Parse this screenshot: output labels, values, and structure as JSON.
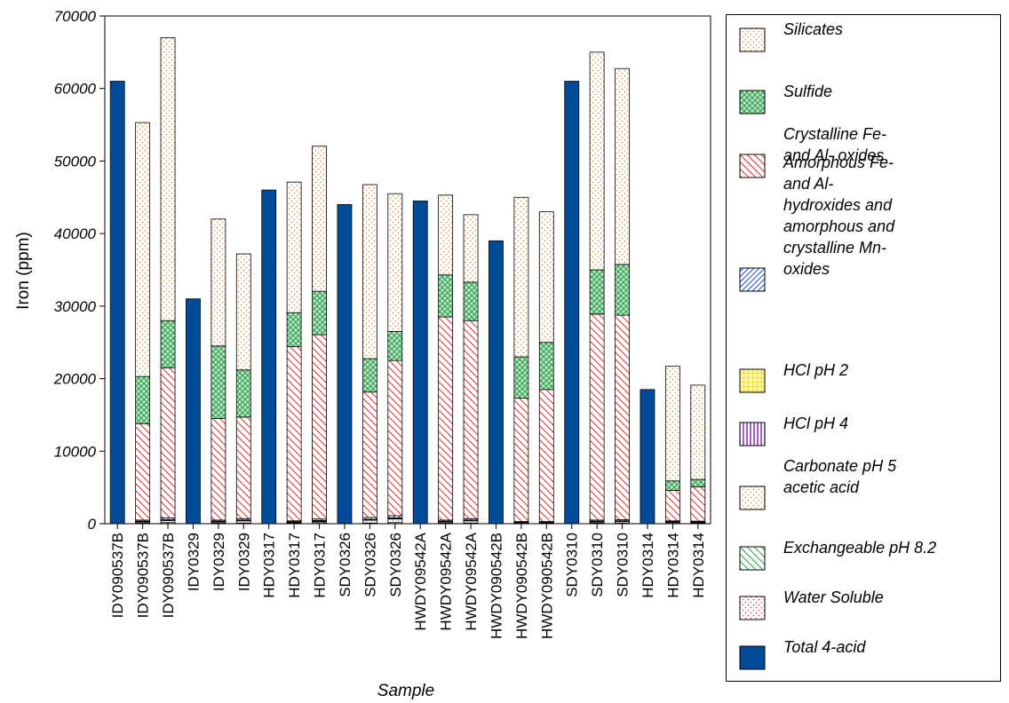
{
  "chart_data": {
    "type": "bar",
    "xlabel": "Sample",
    "ylabel": "Iron (ppm)",
    "ylim": [
      0,
      70000
    ],
    "yticks": [
      0,
      10000,
      20000,
      30000,
      40000,
      50000,
      60000,
      70000
    ],
    "categories": [
      "IDY090537B",
      "IDY090537B",
      "IDY090537B",
      "IDY0329",
      "IDY0329",
      "IDY0329",
      "HDY0317",
      "HDY0317",
      "HDY0317",
      "SDY0326",
      "SDY0326",
      "SDY0326",
      "HWDY09542A",
      "HWDY09542A",
      "HWDY09542A",
      "HWDY090542B",
      "HWDY090542B",
      "HWDY090542B",
      "SDY0310",
      "SDY0310",
      "SDY0310",
      "HDY0314",
      "HDY0314",
      "HDY0314"
    ],
    "legend_position": "right",
    "grid": false,
    "series": [
      {
        "name": "Total 4-acid",
        "color": "#004b97",
        "pattern": "solid",
        "values": [
          61000,
          0,
          0,
          31000,
          0,
          0,
          46000,
          0,
          0,
          44000,
          0,
          0,
          44500,
          0,
          0,
          39000,
          0,
          0,
          61000,
          0,
          0,
          18500,
          0,
          0
        ]
      },
      {
        "name": "Water Soluble",
        "color": "#e04040",
        "pattern": "dots",
        "values": [
          0,
          0,
          0,
          0,
          0,
          0,
          0,
          0,
          0,
          0,
          0,
          0,
          0,
          0,
          0,
          0,
          0,
          0,
          0,
          0,
          0,
          0,
          0,
          0
        ]
      },
      {
        "name": "Exchangeable pH 8.2",
        "color": "#2e9a4a",
        "pattern": "diag-back",
        "values": [
          0,
          100,
          150,
          0,
          100,
          100,
          0,
          80,
          150,
          0,
          100,
          150,
          0,
          100,
          100,
          0,
          50,
          50,
          0,
          100,
          100,
          0,
          50,
          50
        ]
      },
      {
        "name": "Carbonate pH 5 acetic acid",
        "color": "#e08a30",
        "pattern": "dots",
        "values": [
          0,
          150,
          300,
          0,
          150,
          300,
          0,
          100,
          150,
          0,
          400,
          500,
          0,
          150,
          300,
          0,
          50,
          50,
          0,
          150,
          200,
          0,
          150,
          100
        ]
      },
      {
        "name": "HCl pH 4",
        "color": "#7a1fa0",
        "pattern": "vertical",
        "values": [
          0,
          50,
          50,
          0,
          50,
          50,
          0,
          50,
          100,
          0,
          50,
          100,
          0,
          50,
          50,
          0,
          50,
          50,
          0,
          50,
          50,
          0,
          50,
          50
        ]
      },
      {
        "name": "HCl pH 2",
        "color": "#d8c800",
        "pattern": "grid",
        "values": [
          0,
          50,
          50,
          0,
          50,
          50,
          0,
          50,
          50,
          0,
          50,
          50,
          0,
          50,
          50,
          0,
          50,
          50,
          0,
          50,
          50,
          0,
          50,
          50
        ]
      },
      {
        "name": "Amorphous Fe- and Al- hydroxides and amorphous and crystalline Mn- oxides",
        "color": "#2050c0",
        "pattern": "diag-forward",
        "values": [
          0,
          150,
          250,
          0,
          150,
          200,
          0,
          120,
          200,
          0,
          250,
          300,
          0,
          150,
          200,
          0,
          100,
          100,
          0,
          150,
          150,
          0,
          100,
          100
        ]
      },
      {
        "name": "Crystalline Fe- and Al- oxides",
        "color": "#e03030",
        "pattern": "diag-back",
        "values": [
          0,
          13300,
          20700,
          0,
          14000,
          14000,
          0,
          24000,
          25400,
          0,
          17300,
          21400,
          0,
          28000,
          27300,
          0,
          17000,
          18200,
          0,
          28400,
          28200,
          0,
          4200,
          4750
        ]
      },
      {
        "name": "Sulfide",
        "color": "#2e9a4a",
        "pattern": "crosshatch",
        "values": [
          0,
          6500,
          6500,
          0,
          10000,
          6500,
          0,
          4700,
          6000,
          0,
          4600,
          4000,
          0,
          5800,
          5300,
          0,
          5700,
          6500,
          0,
          6100,
          7000,
          0,
          1300,
          1000
        ]
      },
      {
        "name": "Silicates",
        "color": "#e08a30",
        "pattern": "dots",
        "values": [
          0,
          35000,
          39000,
          0,
          17500,
          16000,
          0,
          18000,
          20000,
          0,
          24000,
          19000,
          0,
          11000,
          9300,
          0,
          22000,
          18000,
          0,
          30000,
          27000,
          0,
          15800,
          13000
        ]
      }
    ]
  },
  "legend": {
    "items": [
      {
        "label": "Silicates",
        "swatch": "dots",
        "color": "#e08a30"
      },
      {
        "label": "Sulfide",
        "swatch": "crosshatch",
        "color": "#2e9a4a"
      },
      {
        "label": "Crystalline Fe-\nand Al- oxides",
        "swatch": "diag-back",
        "color": "#e03030"
      },
      {
        "label": "Amorphous Fe-\nand Al-\nhydroxides and\namorphous and\ncrystalline Mn-\noxides",
        "swatch": "diag-forward",
        "color": "#2050c0"
      },
      {
        "label": "HCl pH 2",
        "swatch": "grid",
        "color": "#d8c800"
      },
      {
        "label": "HCl pH 4",
        "swatch": "vertical",
        "color": "#7a1fa0"
      },
      {
        "label": "Carbonate pH 5\nacetic acid",
        "swatch": "dots",
        "color": "#e08a30"
      },
      {
        "label": "Exchangeable pH 8.2",
        "swatch": "diag-back",
        "color": "#2e9a4a"
      },
      {
        "label": "Water Soluble",
        "swatch": "dots",
        "color": "#e04040"
      },
      {
        "label": "Total 4-acid",
        "swatch": "solid",
        "color": "#004b97"
      }
    ]
  }
}
